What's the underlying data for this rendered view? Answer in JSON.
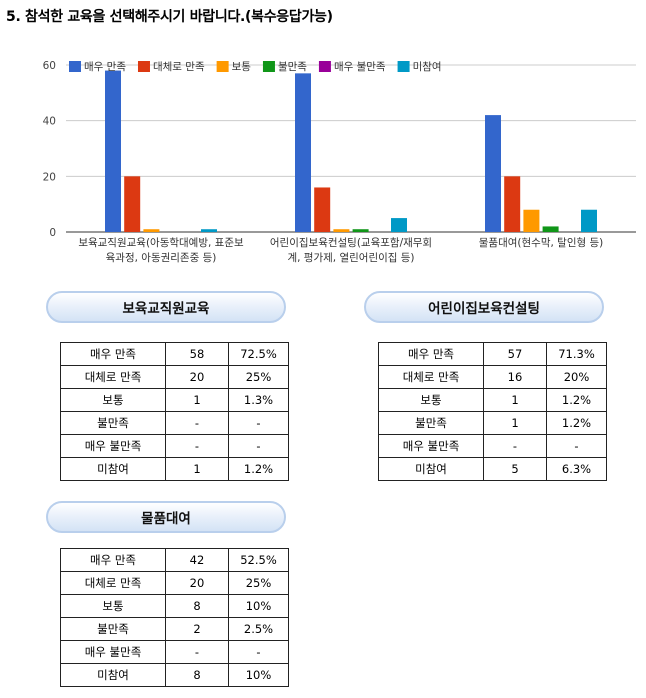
{
  "question": "5. 참석한 교육을 선택해주시기 바랍니다.(복수응답가능)",
  "colors": {
    "매우 만족": "#3366cc",
    "대체로 만족": "#dc3912",
    "보통": "#ff9900",
    "불만족": "#109618",
    "매우 불만족": "#990099",
    "미참여": "#0099c6"
  },
  "chart_data": {
    "type": "bar",
    "categories": [
      "보육교직원교육(아동학대예방, 표준보육과정, 아동권리존중 등)",
      "어린이집보육컨설팅(교육포함/재무회계, 평가제, 열린어린이집 등)",
      "물품대여(현수막, 탈인형 등)"
    ],
    "category_lines": [
      [
        "보육교직원교육(아동학대예방, 표준보",
        "육과정, 아동권리존중 등)"
      ],
      [
        "어린이집보육컨설팅(교육포함/재무회",
        "계, 평가제, 열린어린이집 등)"
      ],
      [
        "물품대여(현수막, 탈인형 등)"
      ]
    ],
    "series": [
      {
        "name": "매우 만족",
        "values": [
          58,
          57,
          42
        ]
      },
      {
        "name": "대체로 만족",
        "values": [
          20,
          16,
          20
        ]
      },
      {
        "name": "보통",
        "values": [
          1,
          1,
          8
        ]
      },
      {
        "name": "불만족",
        "values": [
          0,
          1,
          2
        ]
      },
      {
        "name": "매우 불만족",
        "values": [
          0,
          0,
          0
        ]
      },
      {
        "name": "미참여",
        "values": [
          1,
          5,
          8
        ]
      }
    ],
    "ylim": [
      0,
      60
    ],
    "yticks": [
      0,
      20,
      40,
      60
    ],
    "grid": true,
    "legend": "top-left",
    "title": "",
    "xlabel": "",
    "ylabel": ""
  },
  "tables": {
    "edu": {
      "title": "보육교직원교육",
      "rows": [
        {
          "label": "매우 만족",
          "count": "58",
          "pct": "72.5%"
        },
        {
          "label": "대체로 만족",
          "count": "20",
          "pct": "25%"
        },
        {
          "label": "보통",
          "count": "1",
          "pct": "1.3%"
        },
        {
          "label": "불만족",
          "count": "-",
          "pct": "-"
        },
        {
          "label": "매우 불만족",
          "count": "-",
          "pct": "-"
        },
        {
          "label": "미참여",
          "count": "1",
          "pct": "1.2%"
        }
      ]
    },
    "consult": {
      "title": "어린이집보육컨설팅",
      "rows": [
        {
          "label": "매우 만족",
          "count": "57",
          "pct": "71.3%"
        },
        {
          "label": "대체로 만족",
          "count": "16",
          "pct": "20%"
        },
        {
          "label": "보통",
          "count": "1",
          "pct": "1.2%"
        },
        {
          "label": "불만족",
          "count": "1",
          "pct": "1.2%"
        },
        {
          "label": "매우 불만족",
          "count": "-",
          "pct": "-"
        },
        {
          "label": "미참여",
          "count": "5",
          "pct": "6.3%"
        }
      ]
    },
    "rental": {
      "title": "물품대여",
      "rows": [
        {
          "label": "매우 만족",
          "count": "42",
          "pct": "52.5%"
        },
        {
          "label": "대체로 만족",
          "count": "20",
          "pct": "25%"
        },
        {
          "label": "보통",
          "count": "8",
          "pct": "10%"
        },
        {
          "label": "불만족",
          "count": "2",
          "pct": "2.5%"
        },
        {
          "label": "매우 불만족",
          "count": "-",
          "pct": "-"
        },
        {
          "label": "미참여",
          "count": "8",
          "pct": "10%"
        }
      ]
    }
  }
}
